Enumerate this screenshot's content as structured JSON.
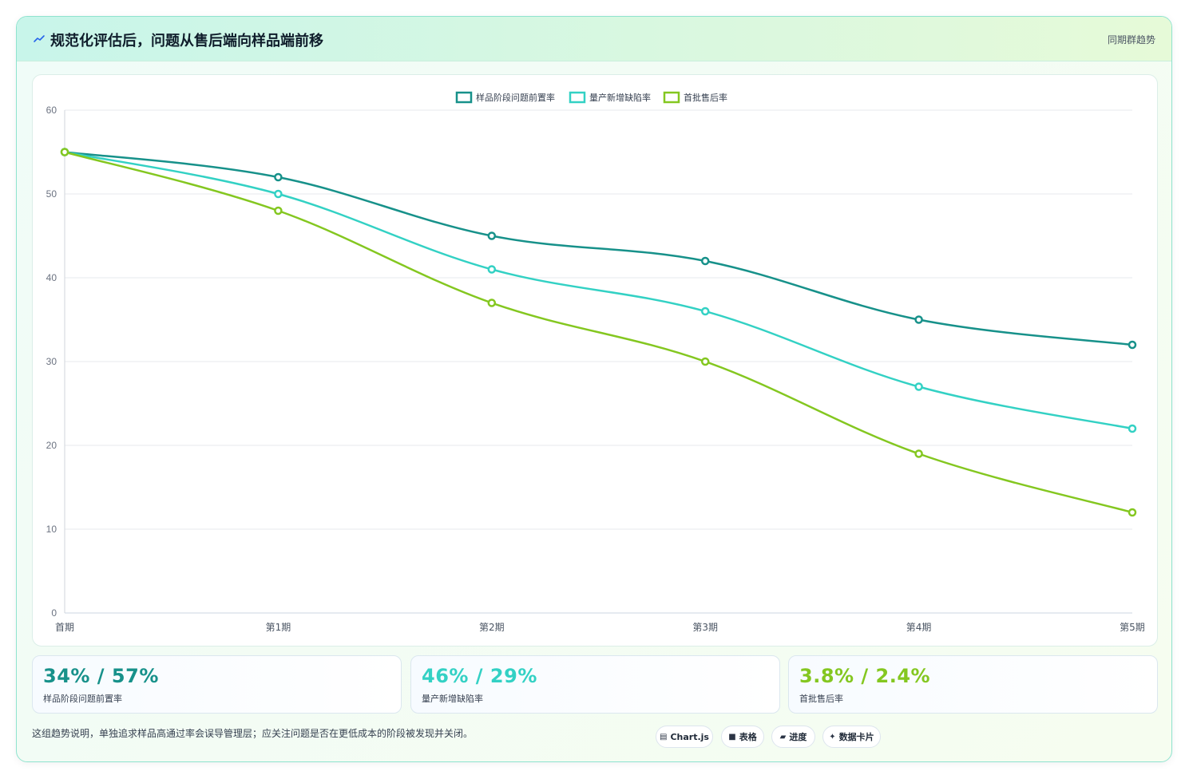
{
  "header": {
    "title": "规范化评估后，问题从售后端向样品端前移",
    "badge": "同期群趋势"
  },
  "colors": {
    "series1": "#17918a",
    "series2": "#33d1c4",
    "series3": "#84c720"
  },
  "chart_data": {
    "type": "line",
    "categories": [
      "首期",
      "第1期",
      "第2期",
      "第3期",
      "第4期",
      "第5期"
    ],
    "series": [
      {
        "name": "样品阶段问题前置率",
        "color": "#17918a",
        "values": [
          55,
          52,
          45,
          42,
          35,
          32
        ]
      },
      {
        "name": "量产新增缺陷率",
        "color": "#33d1c4",
        "values": [
          55,
          50,
          41,
          36,
          27,
          22
        ]
      },
      {
        "name": "首批售后率",
        "color": "#84c720",
        "values": [
          55,
          48,
          37,
          30,
          19,
          12
        ]
      }
    ],
    "ylim": [
      0,
      60
    ],
    "yticks": [
      0,
      10,
      20,
      30,
      40,
      50,
      60
    ],
    "grid": true,
    "legend": "top-center"
  },
  "stats": [
    {
      "value": "34% / 57%",
      "label": "样品阶段问题前置率",
      "color": "#17918a"
    },
    {
      "value": "46% / 29%",
      "label": "量产新增缺陷率",
      "color": "#33d1c4"
    },
    {
      "value": "3.8% / 2.4%",
      "label": "首批售后率",
      "color": "#84c720"
    }
  ],
  "note": "这组趋势说明，单独追求样品高通过率会误导管理层；应关注问题是否在更低成本的阶段被发现并关闭。",
  "tags": [
    {
      "icon": "chart-icon",
      "glyph": "▤",
      "label": "Chart.js"
    },
    {
      "icon": "table-icon",
      "glyph": "■",
      "label": "表格"
    },
    {
      "icon": "progress-icon",
      "glyph": "▰",
      "label": "进度"
    },
    {
      "icon": "sparkle-icon",
      "glyph": "✦",
      "label": "数据卡片"
    }
  ]
}
